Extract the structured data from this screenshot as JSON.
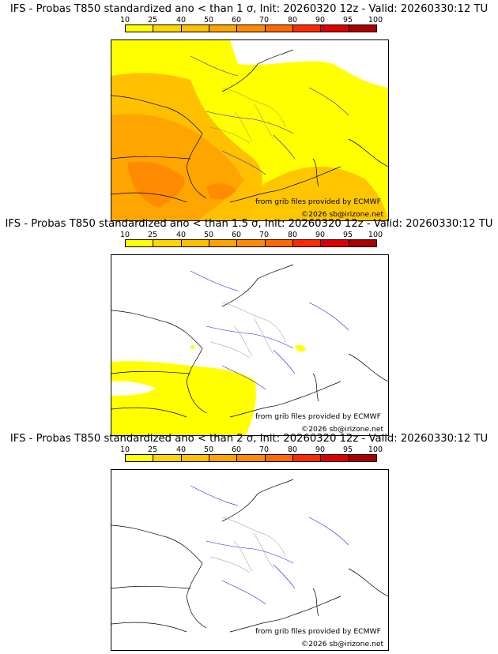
{
  "legend": {
    "ticks": [
      "10",
      "25",
      "40",
      "50",
      "60",
      "70",
      "80",
      "90",
      "95",
      "100"
    ],
    "colors": [
      "#ffff00",
      "#ffd700",
      "#ffc000",
      "#ffa500",
      "#ff8c00",
      "#ff6a00",
      "#ff2a00",
      "#dd0000",
      "#aa0000",
      "#660000"
    ]
  },
  "panels": [
    {
      "title": "IFS - Probas T850  standardized ano < than 1 σ, Init: 20260320 12z - Valid: 20260330:12 TU",
      "sigma": "1",
      "coverage": "widespread"
    },
    {
      "title": "IFS - Probas T850  standardized ano < than 1.5 σ, Init: 20260320 12z - Valid: 20260330:12 TU",
      "sigma": "1.5",
      "coverage": "southwest"
    },
    {
      "title": "IFS - Probas T850  standardized ano < than 2 σ, Init: 20260320 12z - Valid: 20260330:12 TU",
      "sigma": "2",
      "coverage": "none"
    }
  ],
  "credit": {
    "source": "from grib files provided by ECMWF",
    "copyright": "©2026 sb@irizone.net"
  }
}
